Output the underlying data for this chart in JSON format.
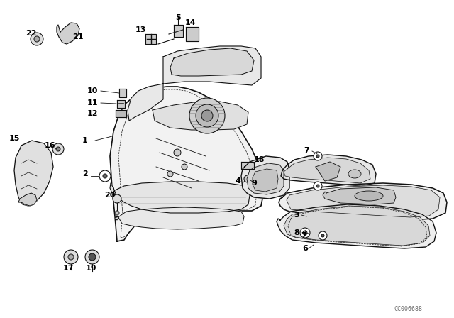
{
  "bg_color": "#ffffff",
  "line_color": "#111111",
  "label_color": "#000000",
  "watermark": "CC006688",
  "figsize": [
    6.4,
    4.48
  ],
  "dpi": 100
}
